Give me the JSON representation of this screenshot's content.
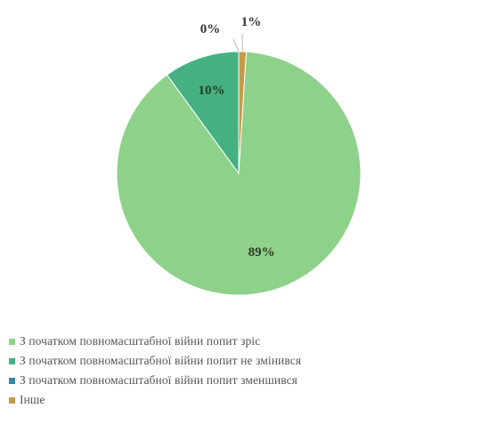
{
  "chart_data": {
    "type": "pie",
    "slices": [
      {
        "label": "З початком повномасштабної війни попит зріс",
        "value": 89,
        "data_label": "89%",
        "color": "#8ed18a"
      },
      {
        "label": "З початком повномасштабної війни попит не змінився",
        "value": 10,
        "data_label": "10%",
        "color": "#45b182"
      },
      {
        "label": "З початком повномасштабної війни попит зменшився",
        "value": 0,
        "data_label": "0%",
        "color": "#2e8aa4"
      },
      {
        "label": "Інше",
        "value": 1,
        "data_label": "1%",
        "color": "#c49b4a"
      }
    ],
    "title": "",
    "legend_position": "bottom-left"
  }
}
